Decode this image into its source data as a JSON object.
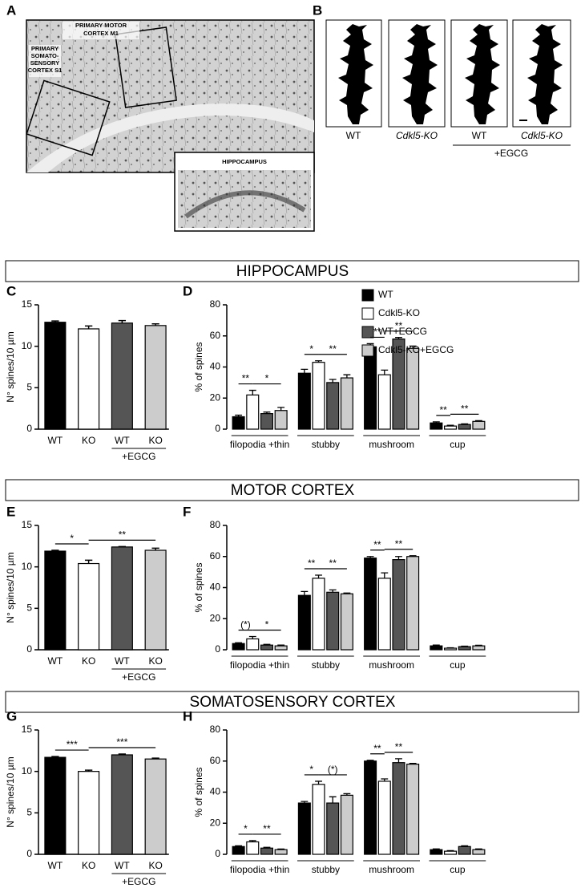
{
  "panel_a": {
    "letter": "A",
    "motor_label": [
      "PRIMARY MOTOR",
      "CORTEX M1"
    ],
    "somato_label": [
      "PRIMARY",
      "SOMATO-",
      "SENSORY",
      "CORTEX S1"
    ],
    "hippocampus_label": "HIPPOCAMPUS"
  },
  "panel_b": {
    "letter": "B",
    "labels": [
      "WT",
      "Cdkl5-KO",
      "WT",
      "Cdkl5-KO"
    ],
    "group": "+EGCG"
  },
  "sections": [
    "HIPPOCAMPUS",
    "MOTOR CORTEX",
    "SOMATOSENSORY CORTEX"
  ],
  "chart_data": [
    {
      "type": "bar",
      "panel": "C",
      "ylabel": "N° spines/10 µm",
      "categories": [
        "WT",
        "KO",
        "WT",
        "KO"
      ],
      "group": {
        "label": "+EGCG",
        "categories": [
          2,
          3
        ]
      },
      "values": [
        12.9,
        12.1,
        12.8,
        12.5
      ],
      "errors": [
        0.15,
        0.35,
        0.3,
        0.2
      ],
      "colors": [
        "#000000",
        "#ffffff",
        "#555555",
        "#cccccc"
      ],
      "ylim": [
        0,
        15
      ],
      "yticks": [
        0,
        5,
        10,
        15
      ]
    },
    {
      "type": "grouped_bar",
      "panel": "D",
      "ylabel": "% of spines",
      "categories": [
        "filopodia +thin",
        "stubby",
        "mushroom",
        "cup"
      ],
      "series": [
        {
          "name": "WT",
          "color": "#000000",
          "values": [
            8,
            36,
            53,
            4
          ],
          "errors": [
            1,
            2.5,
            2,
            0.7
          ]
        },
        {
          "name": "Cdkl5-KO",
          "color": "#ffffff",
          "values": [
            22,
            43,
            35,
            2
          ],
          "errors": [
            3,
            1,
            3,
            0.5
          ]
        },
        {
          "name": "WT+EGCG",
          "color": "#555555",
          "values": [
            10,
            30,
            58,
            3
          ],
          "errors": [
            1,
            2,
            1,
            0.4
          ]
        },
        {
          "name": "Cdkl5-KO+EGCG",
          "color": "#cccccc",
          "values": [
            12,
            33,
            52,
            5
          ],
          "errors": [
            2,
            2,
            1.5,
            0.5
          ]
        }
      ],
      "ylim": [
        0,
        80
      ],
      "yticks": [
        0,
        20,
        40,
        60,
        80
      ],
      "annotations": [
        {
          "text": "**",
          "category": 0,
          "bars": [
            0,
            1
          ]
        },
        {
          "text": "*",
          "category": 0,
          "bars": [
            1,
            3
          ]
        },
        {
          "text": "*",
          "category": 1,
          "bars": [
            0,
            1
          ]
        },
        {
          "text": "**",
          "category": 1,
          "bars": [
            1,
            3
          ]
        },
        {
          "text": "**",
          "category": 2,
          "bars": [
            0,
            1
          ]
        },
        {
          "text": "**",
          "category": 2,
          "bars": [
            1,
            3
          ]
        },
        {
          "text": "**",
          "category": 3,
          "bars": [
            0,
            1
          ]
        },
        {
          "text": "**",
          "category": 3,
          "bars": [
            1,
            3
          ]
        }
      ]
    },
    {
      "type": "bar",
      "panel": "E",
      "ylabel": "N° spines/10 µm",
      "categories": [
        "WT",
        "KO",
        "WT",
        "KO"
      ],
      "group": {
        "label": "+EGCG",
        "categories": [
          2,
          3
        ]
      },
      "values": [
        11.9,
        10.4,
        12.4,
        12.0
      ],
      "errors": [
        0.1,
        0.4,
        0.05,
        0.25
      ],
      "colors": [
        "#000000",
        "#ffffff",
        "#555555",
        "#cccccc"
      ],
      "ylim": [
        0,
        15
      ],
      "yticks": [
        0,
        5,
        10,
        15
      ],
      "annotations": [
        {
          "text": "*",
          "bars": [
            0,
            1
          ]
        },
        {
          "text": "**",
          "bars": [
            1,
            3
          ]
        }
      ]
    },
    {
      "type": "grouped_bar",
      "panel": "F",
      "ylabel": "% of spines",
      "categories": [
        "filopodia +thin",
        "stubby",
        "mushroom",
        "cup"
      ],
      "series": [
        {
          "color": "#000000",
          "values": [
            4,
            35,
            59,
            2.5
          ],
          "errors": [
            0.5,
            2.5,
            1,
            0.5
          ]
        },
        {
          "color": "#ffffff",
          "values": [
            7,
            46,
            46,
            1
          ],
          "errors": [
            1.5,
            2,
            3.5,
            0.3
          ]
        },
        {
          "color": "#555555",
          "values": [
            3,
            37,
            58,
            2
          ],
          "errors": [
            0.5,
            1.5,
            2,
            0.3
          ]
        },
        {
          "color": "#cccccc",
          "values": [
            2.5,
            36,
            60,
            2.5
          ],
          "errors": [
            0.5,
            0.5,
            0.5,
            0.4
          ]
        }
      ],
      "ylim": [
        0,
        80
      ],
      "yticks": [
        0,
        20,
        40,
        60,
        80
      ],
      "annotations": [
        {
          "text": "(*)",
          "category": 0,
          "bars": [
            0,
            1
          ]
        },
        {
          "text": "*",
          "category": 0,
          "bars": [
            1,
            3
          ]
        },
        {
          "text": "**",
          "category": 1,
          "bars": [
            0,
            1
          ]
        },
        {
          "text": "**",
          "category": 1,
          "bars": [
            1,
            3
          ]
        },
        {
          "text": "**",
          "category": 2,
          "bars": [
            0,
            1
          ]
        },
        {
          "text": "**",
          "category": 2,
          "bars": [
            1,
            3
          ]
        }
      ]
    },
    {
      "type": "bar",
      "panel": "G",
      "ylabel": "N° spines/10 µm",
      "categories": [
        "WT",
        "KO",
        "WT",
        "KO"
      ],
      "group": {
        "label": "+EGCG",
        "categories": [
          2,
          3
        ]
      },
      "values": [
        11.7,
        10.0,
        12.0,
        11.5
      ],
      "errors": [
        0.1,
        0.15,
        0.1,
        0.1
      ],
      "colors": [
        "#000000",
        "#ffffff",
        "#555555",
        "#cccccc"
      ],
      "ylim": [
        0,
        15
      ],
      "yticks": [
        0,
        5,
        10,
        15
      ],
      "annotations": [
        {
          "text": "***",
          "bars": [
            0,
            1
          ]
        },
        {
          "text": "***",
          "bars": [
            1,
            3
          ]
        }
      ]
    },
    {
      "type": "grouped_bar",
      "panel": "H",
      "ylabel": "% of spines",
      "categories": [
        "filopodia +thin",
        "stubby",
        "mushroom",
        "cup"
      ],
      "series": [
        {
          "color": "#000000",
          "values": [
            5,
            33,
            60,
            3
          ],
          "errors": [
            0.5,
            1,
            0.5,
            0.5
          ]
        },
        {
          "color": "#ffffff",
          "values": [
            8,
            45,
            47,
            2
          ],
          "errors": [
            0.8,
            2,
            1.5,
            0.4
          ]
        },
        {
          "color": "#555555",
          "values": [
            4,
            33,
            59,
            5
          ],
          "errors": [
            0.5,
            4,
            2.5,
            0.5
          ]
        },
        {
          "color": "#cccccc",
          "values": [
            3,
            38,
            58,
            3
          ],
          "errors": [
            0.4,
            1,
            0.5,
            0.5
          ]
        }
      ],
      "ylim": [
        0,
        80
      ],
      "yticks": [
        0,
        20,
        40,
        60,
        80
      ],
      "annotations": [
        {
          "text": "*",
          "category": 0,
          "bars": [
            0,
            1
          ]
        },
        {
          "text": "**",
          "category": 0,
          "bars": [
            1,
            3
          ]
        },
        {
          "text": "*",
          "category": 1,
          "bars": [
            0,
            1
          ]
        },
        {
          "text": "(*)",
          "category": 1,
          "bars": [
            1,
            3
          ]
        },
        {
          "text": "**",
          "category": 2,
          "bars": [
            0,
            1
          ]
        },
        {
          "text": "**",
          "category": 2,
          "bars": [
            1,
            3
          ]
        }
      ]
    }
  ]
}
